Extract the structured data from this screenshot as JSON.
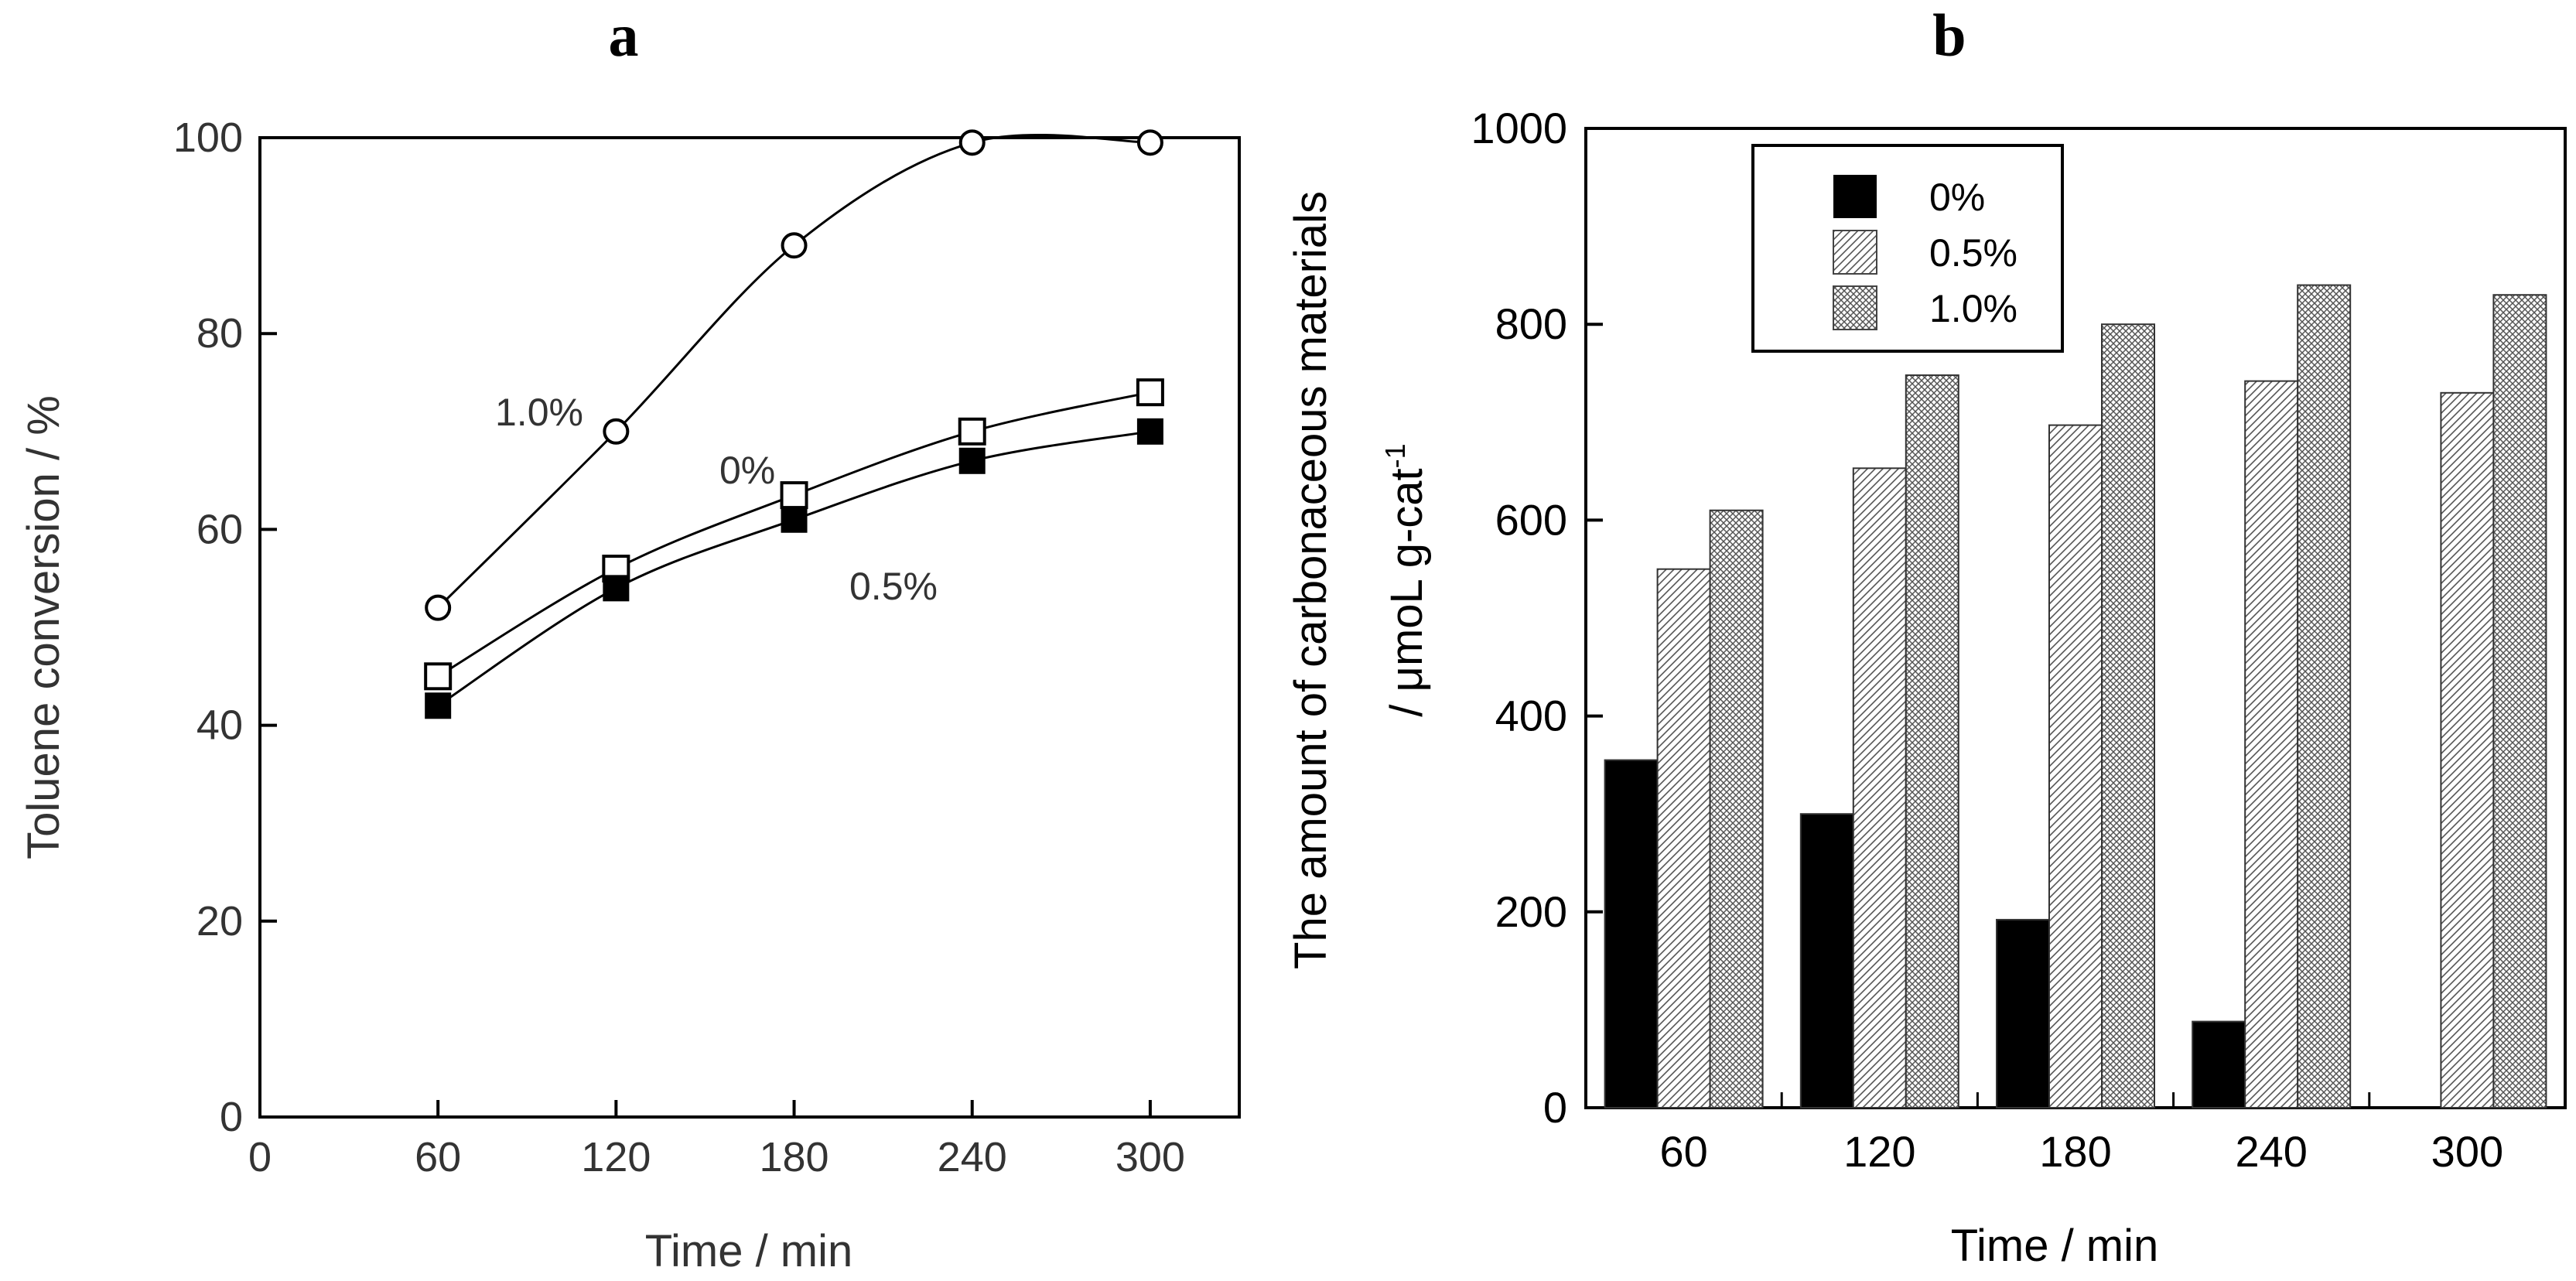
{
  "chart_data": [
    {
      "panel_label": "a",
      "type": "line",
      "xlabel": "Time / min",
      "ylabel": "Toluene conversion / %",
      "xlim": [
        0,
        330
      ],
      "ylim": [
        0,
        100
      ],
      "x_ticks": [
        "0",
        "60",
        "120",
        "180",
        "240",
        "300"
      ],
      "y_ticks": [
        "0",
        "20",
        "40",
        "60",
        "80",
        "100"
      ],
      "x": [
        60,
        120,
        180,
        240,
        300
      ],
      "series": [
        {
          "name": "1.0%",
          "marker": "open-circle",
          "values": [
            52,
            70,
            89,
            99.5,
            99.5
          ]
        },
        {
          "name": "0%",
          "marker": "open-square",
          "values": [
            45,
            56,
            63.5,
            70,
            74
          ]
        },
        {
          "name": "0.5%",
          "marker": "filled-square",
          "values": [
            42,
            54,
            61,
            67,
            70
          ]
        }
      ],
      "grid": false
    },
    {
      "panel_label": "b",
      "type": "bar",
      "xlabel": "Time / min",
      "ylabel_line1": "The amount of carbonaceous materials",
      "ylabel_line2": "/ μmoL g-cat",
      "ylabel_superscript": "-1",
      "ylim": [
        0,
        1000
      ],
      "y_ticks": [
        "0",
        "200",
        "400",
        "600",
        "800",
        "1000"
      ],
      "categories": [
        "60",
        "120",
        "180",
        "240",
        "300"
      ],
      "series": [
        {
          "name": "0%",
          "fill": "solid-black",
          "values": [
            355,
            300,
            192,
            88,
            0
          ]
        },
        {
          "name": "0.5%",
          "fill": "diagonal-hatch",
          "values": [
            550,
            653,
            697,
            742,
            730
          ]
        },
        {
          "name": "1.0%",
          "fill": "cross-hatch",
          "values": [
            610,
            748,
            800,
            840,
            830
          ]
        }
      ],
      "legend_position": "top-left",
      "grid": false
    }
  ]
}
